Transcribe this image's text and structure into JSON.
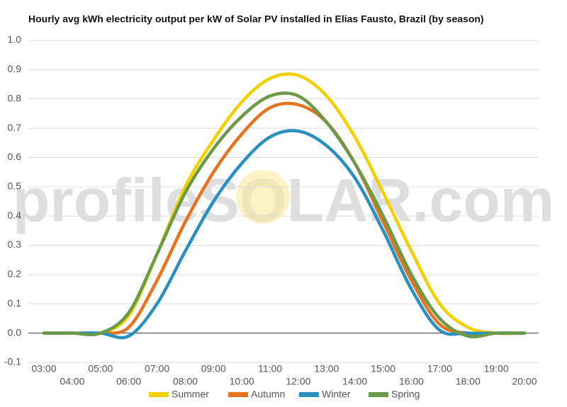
{
  "chart_data": {
    "type": "line",
    "title": "Hourly avg kWh electricity output per kW of Solar PV installed in Elias Fausto, Brazil (by season)",
    "watermark": "profileSOLAR.com",
    "categories": [
      "03:00",
      "04:00",
      "05:00",
      "06:00",
      "07:00",
      "08:00",
      "09:00",
      "10:00",
      "11:00",
      "12:00",
      "13:00",
      "14:00",
      "15:00",
      "16:00",
      "17:00",
      "18:00",
      "19:00",
      "20:00"
    ],
    "series": [
      {
        "name": "Summer",
        "color": "#f5d000",
        "values": [
          0,
          0,
          0,
          0.06,
          0.27,
          0.5,
          0.66,
          0.79,
          0.87,
          0.88,
          0.81,
          0.67,
          0.48,
          0.28,
          0.1,
          0.02,
          0,
          0
        ]
      },
      {
        "name": "Autumn",
        "color": "#e8731f",
        "values": [
          0,
          0,
          0,
          0.02,
          0.18,
          0.38,
          0.55,
          0.68,
          0.77,
          0.78,
          0.72,
          0.58,
          0.38,
          0.18,
          0.03,
          0,
          0,
          0
        ]
      },
      {
        "name": "Winter",
        "color": "#2a8fc1",
        "values": [
          0,
          0,
          0,
          -0.01,
          0.1,
          0.28,
          0.45,
          0.58,
          0.67,
          0.69,
          0.64,
          0.53,
          0.35,
          0.15,
          0.01,
          0,
          0,
          0
        ]
      },
      {
        "name": "Spring",
        "color": "#6b9a4a",
        "values": [
          0,
          0,
          0,
          0.07,
          0.27,
          0.48,
          0.63,
          0.74,
          0.81,
          0.81,
          0.72,
          0.58,
          0.4,
          0.2,
          0.05,
          -0.01,
          0,
          0
        ]
      }
    ],
    "ylim": [
      -0.1,
      1.0
    ],
    "yticks": [
      -0.1,
      {
        "value": 0,
        "label": "0.0"
      },
      0.1,
      0.2,
      0.3,
      0.4,
      0.5,
      0.6,
      0.7,
      0.8,
      0.9,
      {
        "value": 1.0,
        "label": "1.0"
      }
    ],
    "grid": true,
    "legend": "bottom"
  }
}
